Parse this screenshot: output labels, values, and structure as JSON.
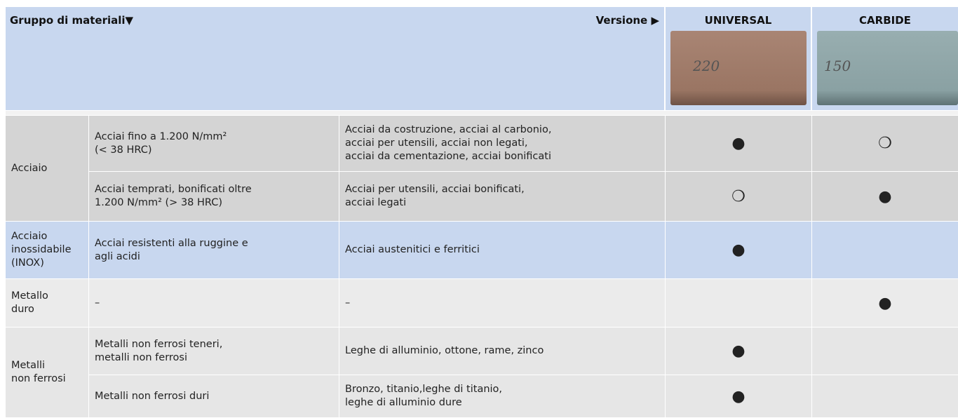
{
  "header": {
    "material_group": "Gruppo di materiali▼",
    "version": "Versione ▶",
    "versions": [
      {
        "name": "UNIVERSAL",
        "image_label": "220"
      },
      {
        "name": "CARBIDE",
        "image_label": "150"
      }
    ]
  },
  "table": {
    "groups": [
      {
        "name": "Acciaio",
        "rows": [
          {
            "material": "Acciai fino a 1.200 N/mm²\n(< 38 HRC)",
            "examples": "Acciai da costruzione, acciai al carbonio,\nacciai per utensili, acciai non legati,\nacciai da cementazione, acciai bonificati",
            "universal": "●",
            "carbide": "❍"
          },
          {
            "material": "Acciai temprati, bonificati oltre\n1.200 N/mm² (> 38 HRC)",
            "examples": "Acciai per utensili, acciai bonificati,\nacciai legati",
            "universal": "❍",
            "carbide": "●"
          }
        ]
      },
      {
        "name": "Acciaio\ninossidabile\n(INOX)",
        "rows": [
          {
            "material": "Acciai resistenti alla ruggine e\nagli acidi",
            "examples": "Acciai austenitici e ferritici",
            "universal": "●"
          }
        ]
      },
      {
        "name": "Metallo\nduro",
        "rows": [
          {
            "material": "–",
            "examples": "–",
            "carbide": "●"
          }
        ]
      },
      {
        "name": "Metalli\nnon ferrosi",
        "rows": [
          {
            "material": "Metalli non ferrosi teneri,\nmetalli non ferrosi",
            "examples": "Leghe di alluminio, ottone, rame, zinco",
            "universal": "●"
          },
          {
            "material": "Metalli non ferrosi duri",
            "examples": "Bronzo, titanio,leghe di titanio,\nleghe di alluminio dure",
            "universal": "●"
          }
        ]
      }
    ]
  }
}
